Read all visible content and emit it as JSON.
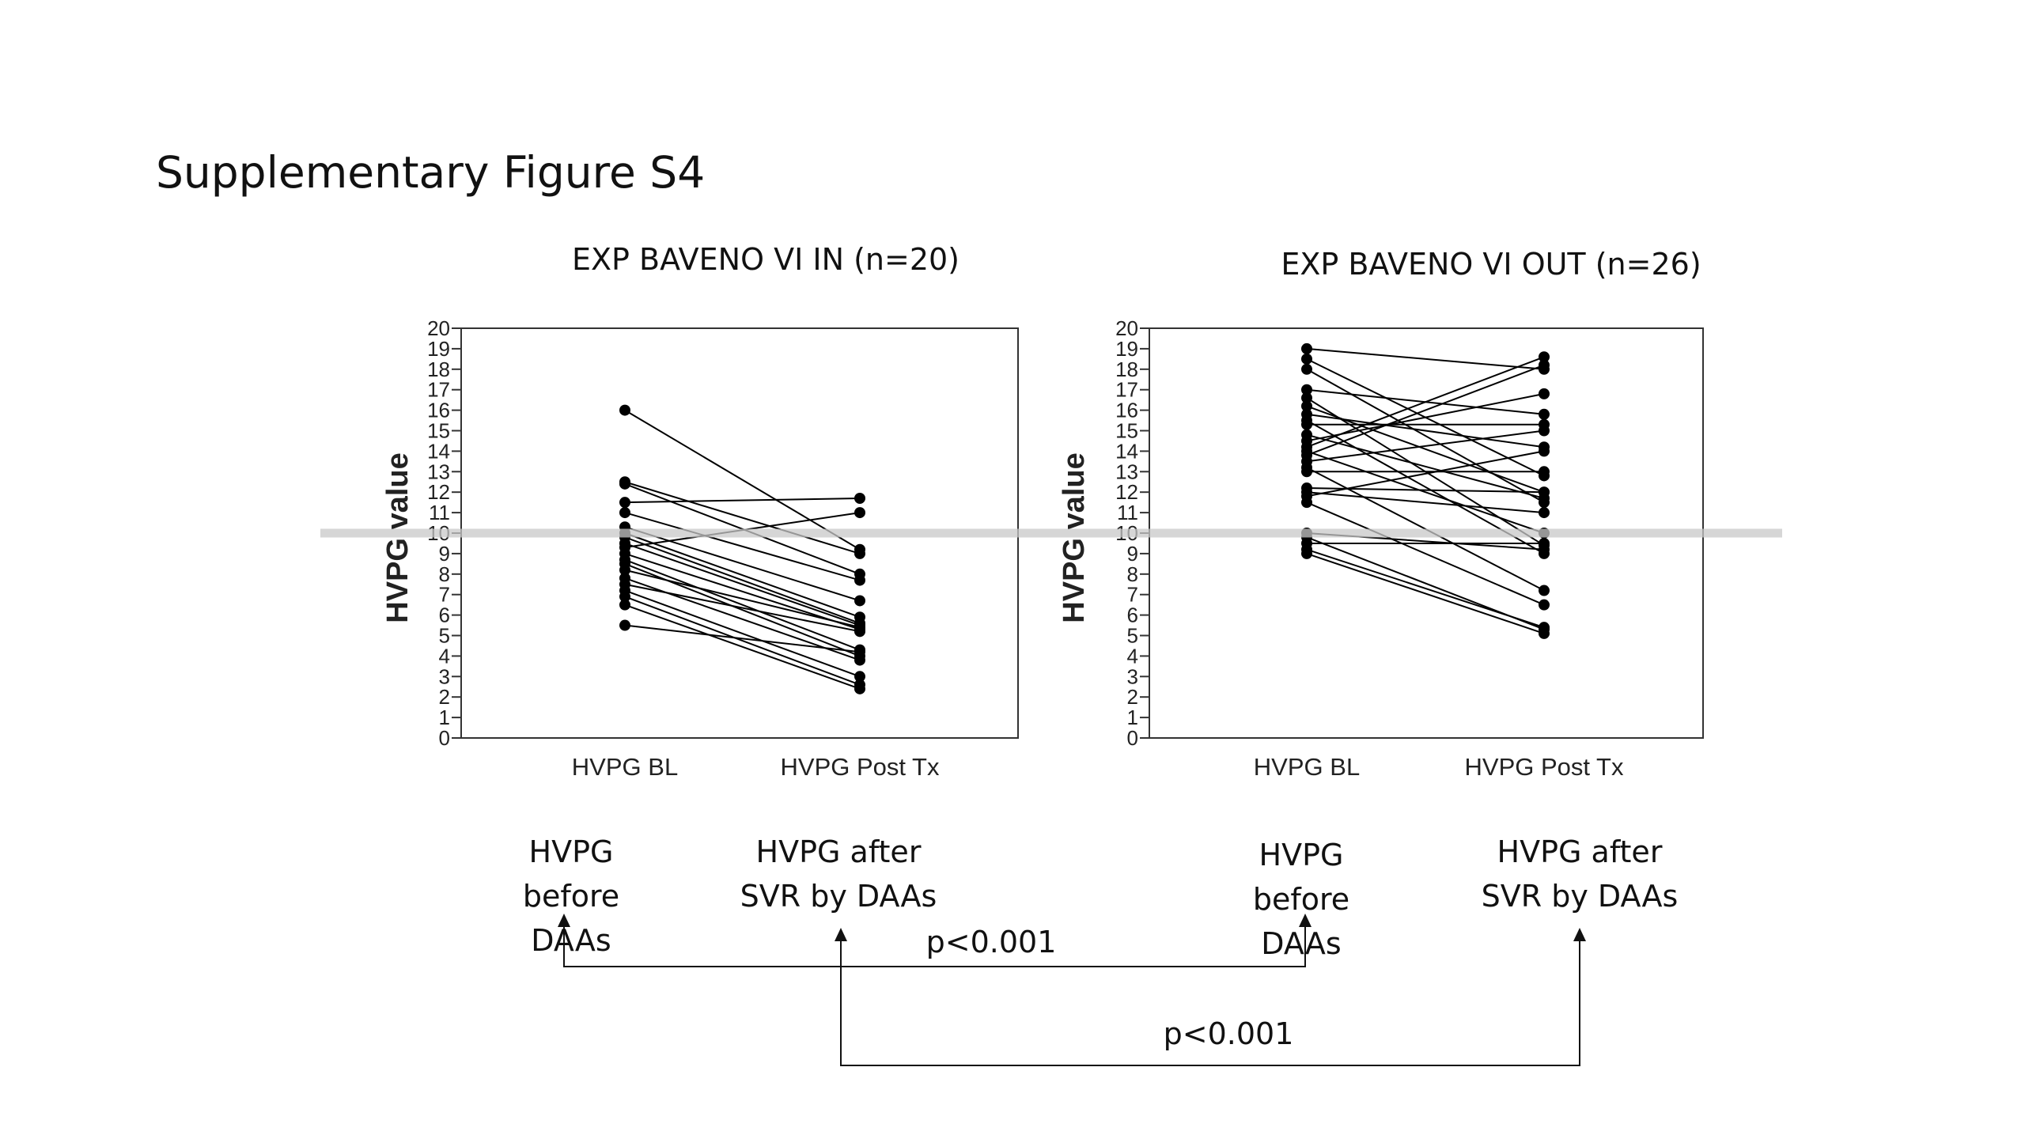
{
  "slide_title": "Supplementary Figure S4",
  "line_color": "#000000",
  "reference_band_color": "#c8c8c8",
  "chart_data": [
    {
      "type": "line",
      "title": "EXP BAVENO VI IN (n=20)",
      "ylabel": "HVPG value",
      "xlabel": "",
      "categories": [
        "HVPG BL",
        "HVPG Post Tx"
      ],
      "ylim": [
        0,
        20
      ],
      "yticks": [
        "0",
        "1",
        "2",
        "3",
        "4",
        "5",
        "6",
        "7",
        "8",
        "9",
        "10",
        "11",
        "12",
        "13",
        "14",
        "15",
        "16",
        "17",
        "18",
        "19",
        "20"
      ],
      "reference_line_y": 10,
      "grid": false,
      "pairs": [
        [
          16,
          9.2
        ],
        [
          12.5,
          9.0
        ],
        [
          12.4,
          8.0
        ],
        [
          11.5,
          11.7
        ],
        [
          11.0,
          7.7
        ],
        [
          10.3,
          6.7
        ],
        [
          10.0,
          5.9
        ],
        [
          9.8,
          5.6
        ],
        [
          9.5,
          5.5
        ],
        [
          9.3,
          11.0
        ],
        [
          9.0,
          5.3
        ],
        [
          8.7,
          4.3
        ],
        [
          8.5,
          4.0
        ],
        [
          8.2,
          5.4
        ],
        [
          7.8,
          3.8
        ],
        [
          7.5,
          5.2
        ],
        [
          7.2,
          3.0
        ],
        [
          6.9,
          2.6
        ],
        [
          6.5,
          2.4
        ],
        [
          5.5,
          4.2
        ]
      ]
    },
    {
      "type": "line",
      "title": "EXP BAVENO VI OUT (n=26)",
      "ylabel": "HVPG value",
      "xlabel": "",
      "categories": [
        "HVPG BL",
        "HVPG Post Tx"
      ],
      "ylim": [
        0,
        20
      ],
      "yticks": [
        "0",
        "1",
        "2",
        "3",
        "4",
        "5",
        "6",
        "7",
        "8",
        "9",
        "10",
        "11",
        "12",
        "13",
        "14",
        "15",
        "16",
        "17",
        "18",
        "19",
        "20"
      ],
      "reference_line_y": 10,
      "grid": false,
      "pairs": [
        [
          19.0,
          18.0
        ],
        [
          18.5,
          12.8
        ],
        [
          18.0,
          11.5
        ],
        [
          17.0,
          15.8
        ],
        [
          16.6,
          9.4
        ],
        [
          16.2,
          12.0
        ],
        [
          15.8,
          14.2
        ],
        [
          15.5,
          9.0
        ],
        [
          15.3,
          15.3
        ],
        [
          14.8,
          11.7
        ],
        [
          14.5,
          16.8
        ],
        [
          14.2,
          18.6
        ],
        [
          14.0,
          10.0
        ],
        [
          13.8,
          18.2
        ],
        [
          13.5,
          15.0
        ],
        [
          13.2,
          7.2
        ],
        [
          13.0,
          13.0
        ],
        [
          12.2,
          12.0
        ],
        [
          12.0,
          11.0
        ],
        [
          11.8,
          14.0
        ],
        [
          11.5,
          6.5
        ],
        [
          10.0,
          9.2
        ],
        [
          9.8,
          5.3
        ],
        [
          9.5,
          9.5
        ],
        [
          9.2,
          5.4
        ],
        [
          9.0,
          5.1
        ]
      ]
    }
  ],
  "annotations": {
    "in_before_lines": [
      "HVPG",
      "before",
      "DAAs"
    ],
    "in_after_lines": [
      "HVPG after",
      "SVR by DAAs"
    ],
    "out_before_lines": [
      "HVPG",
      "before",
      "DAAs"
    ],
    "out_after_lines": [
      "HVPG after",
      "SVR by DAAs"
    ],
    "p_before": "p<0.001",
    "p_after": "p<0.001"
  }
}
